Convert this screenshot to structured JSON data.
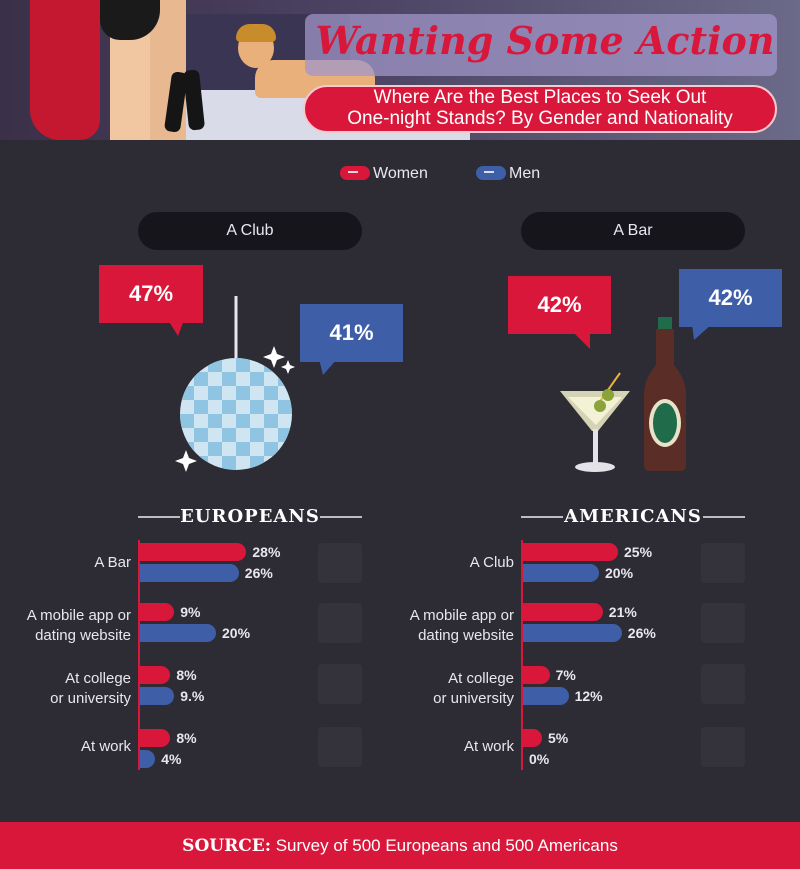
{
  "header": {
    "title": "Wanting Some Action",
    "subtitle_line1": "Where Are the Best Places to Seek Out",
    "subtitle_line2": "One-night Stands? By Gender and Nationality"
  },
  "legend": {
    "women": "Women",
    "men": "Men"
  },
  "colors": {
    "women": "#d9173a",
    "men": "#3e5fa8",
    "background": "#2d2b33"
  },
  "highlights": {
    "left": {
      "place": "A Club",
      "women": "47%",
      "men": "41%",
      "icon": "disco-ball-icon"
    },
    "right": {
      "place": "A Bar",
      "women": "42%",
      "men": "42%",
      "icon": "cocktail-and-beer-icon"
    }
  },
  "chart_data": [
    {
      "type": "bar",
      "title": "EUROPEANS",
      "categories": [
        "A Bar",
        "A mobile app or dating website",
        "At college or university",
        "At work"
      ],
      "series": [
        {
          "name": "Women",
          "values": [
            28,
            9,
            8,
            8
          ]
        },
        {
          "name": "Men",
          "values": [
            26,
            20,
            9,
            4
          ]
        }
      ],
      "value_labels": {
        "Women": [
          "28%",
          "9%",
          "8%",
          "8%"
        ],
        "Men": [
          "26%",
          "20%",
          "9.%",
          "4%"
        ]
      }
    },
    {
      "type": "bar",
      "title": "AMERICANS",
      "categories": [
        "A Club",
        "A mobile app or dating website",
        "At college or university",
        "At work"
      ],
      "series": [
        {
          "name": "Women",
          "values": [
            25,
            21,
            7,
            5
          ]
        },
        {
          "name": "Men",
          "values": [
            20,
            26,
            12,
            0
          ]
        }
      ],
      "value_labels": {
        "Women": [
          "25%",
          "21%",
          "7%",
          "5%"
        ],
        "Men": [
          "20%",
          "26%",
          "12%",
          "0%"
        ]
      }
    }
  ],
  "labels": {
    "eu": [
      {
        "l1": "A Bar",
        "l2": ""
      },
      {
        "l1": "A mobile app or",
        "l2": "dating website"
      },
      {
        "l1": "At college",
        "l2": "or university"
      },
      {
        "l1": "At work",
        "l2": ""
      }
    ],
    "us": [
      {
        "l1": "A Club",
        "l2": ""
      },
      {
        "l1": "A mobile app or",
        "l2": "dating website"
      },
      {
        "l1": "At college",
        "l2": "or university"
      },
      {
        "l1": "At work",
        "l2": ""
      }
    ]
  },
  "footer": {
    "source_label": "SOURCE:",
    "source_text": "Survey of 500 Europeans and 500 Americans"
  }
}
